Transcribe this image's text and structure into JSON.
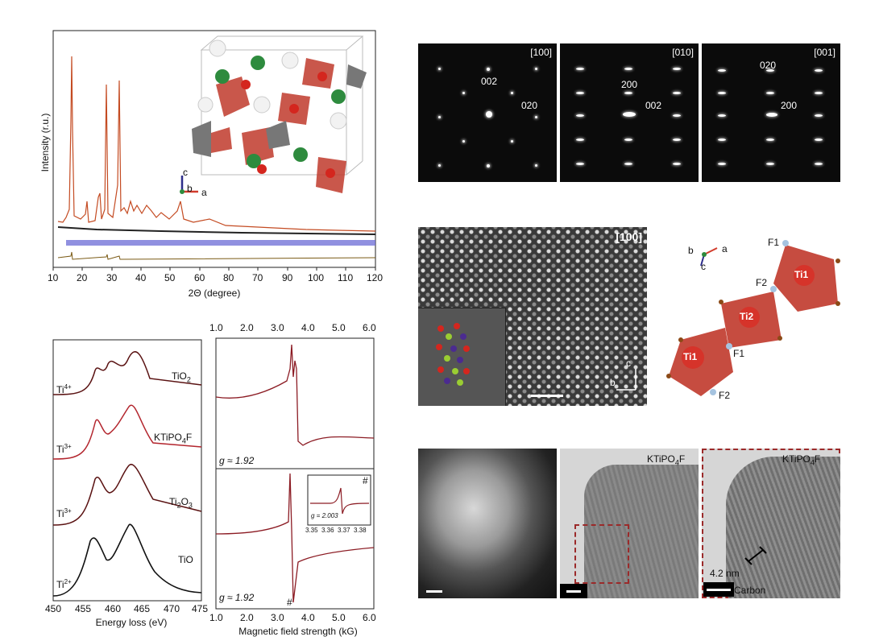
{
  "xrd": {
    "ylabel": "Intensity (r.u.)",
    "xlabel": "2Θ (degree)",
    "xticks": [
      "10",
      "20",
      "30",
      "40",
      "50",
      "60",
      "70",
      "80",
      "90",
      "100",
      "110",
      "120"
    ],
    "axes_legend": {
      "c": "c",
      "b": "b",
      "a": "a"
    }
  },
  "eels": {
    "xlabel": "Energy loss (eV)",
    "xticks": [
      "450",
      "455",
      "460",
      "465",
      "470",
      "475"
    ],
    "spectra": [
      {
        "compound_main": "TiO",
        "compound_sub": "2",
        "ox_main": "Ti",
        "ox_sup": "4+",
        "color": "#5a1212"
      },
      {
        "compound_main": "KTiPO",
        "compound_sub": "4",
        "compound_tail": "F",
        "ox_main": "Ti",
        "ox_sup": "3+",
        "color": "#b3262e"
      },
      {
        "compound_main": "Ti",
        "compound_sub": "2",
        "compound_tail": "O",
        "compound_sub2": "3",
        "ox_main": "Ti",
        "ox_sup": "3+",
        "color": "#5a1212"
      },
      {
        "compound_main": "TiO",
        "ox_main": "Ti",
        "ox_sup": "2+",
        "color": "#111111"
      }
    ]
  },
  "epr": {
    "xlabel": "Magnetic field strength (kG)",
    "xticks": [
      "1.0",
      "2.0",
      "3.0",
      "4.0",
      "5.0",
      "6.0"
    ],
    "top_g": "g ≈ 1.92",
    "bottom_g": "g ≈ 1.92",
    "hash": "#",
    "inset": {
      "hash": "#",
      "g": "g = 2.003",
      "xticks": [
        "3.35",
        "3.36",
        "3.37",
        "3.38"
      ]
    }
  },
  "saed": [
    {
      "zone": "[100]",
      "spots": [
        {
          "t": "002"
        },
        {
          "t": "020"
        }
      ]
    },
    {
      "zone": "[010]",
      "spots": [
        {
          "t": "200"
        },
        {
          "t": "002"
        }
      ]
    },
    {
      "zone": "[001]",
      "spots": [
        {
          "t": "020"
        },
        {
          "t": "200"
        }
      ]
    }
  ],
  "hrtem": {
    "zone": "[100]",
    "axis_c": "c",
    "axis_b": "b"
  },
  "octa": {
    "axes": {
      "b": "b",
      "a": "a",
      "c": "c"
    },
    "labels": {
      "ti1a": "Ti1",
      "ti2": "Ti2",
      "ti1b": "Ti1",
      "f1a": "F1",
      "f2a": "F2",
      "f1b": "F1",
      "f2b": "F2"
    }
  },
  "tem": [
    {
      "label_main": "",
      "label_sub": "",
      "label_tail": ""
    },
    {
      "label_main": "KTiPO",
      "label_sub": "4",
      "label_tail": "F"
    },
    {
      "label_main": "KTiPO",
      "label_sub": "4",
      "label_tail": "F",
      "measure": "4.2 nm",
      "carbon": "Carbon"
    }
  ]
}
